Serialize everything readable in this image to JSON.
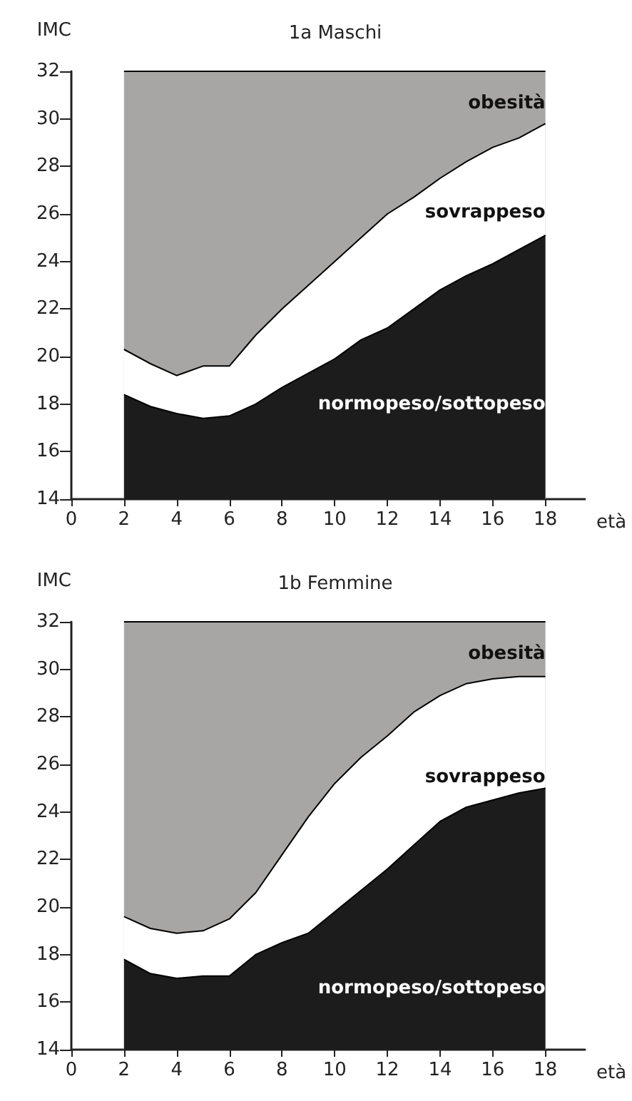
{
  "chart_data": [
    {
      "type": "area",
      "title": "1a Maschi",
      "xlabel": "età",
      "ylabel": "IMC",
      "x": [
        2,
        3,
        4,
        5,
        6,
        7,
        8,
        9,
        10,
        11,
        12,
        13,
        14,
        15,
        16,
        17,
        18
      ],
      "series": [
        {
          "name": "obesità",
          "color": "#a8a6a4",
          "values": [
            32,
            32,
            32,
            32,
            32,
            32,
            32,
            32,
            32,
            32,
            32,
            32,
            32,
            32,
            32,
            32,
            32
          ]
        },
        {
          "name": "sovrappeso",
          "color": "#ffffff",
          "values": [
            20.3,
            19.7,
            19.2,
            19.6,
            19.6,
            20.9,
            22.0,
            23.0,
            24.0,
            25.0,
            26.0,
            26.7,
            27.5,
            28.2,
            28.8,
            29.2,
            29.8
          ]
        },
        {
          "name": "normopeso/sottopeso",
          "color": "#1c1c1c",
          "values": [
            18.4,
            17.9,
            17.6,
            17.4,
            17.5,
            18.0,
            18.7,
            19.3,
            19.9,
            20.7,
            21.2,
            22.0,
            22.8,
            23.4,
            23.9,
            24.5,
            25.1
          ]
        }
      ],
      "xlim": [
        0,
        19.5
      ],
      "xticks": [
        0,
        2,
        4,
        6,
        8,
        10,
        12,
        14,
        16,
        18
      ],
      "ylim": [
        14,
        32
      ],
      "yticks": [
        14,
        16,
        18,
        20,
        22,
        24,
        26,
        28,
        30,
        32
      ]
    },
    {
      "type": "area",
      "title": "1b Femmine",
      "xlabel": "età",
      "ylabel": "IMC",
      "x": [
        2,
        3,
        4,
        5,
        6,
        7,
        8,
        9,
        10,
        11,
        12,
        13,
        14,
        15,
        16,
        17,
        18
      ],
      "series": [
        {
          "name": "obesità",
          "color": "#a8a6a4",
          "values": [
            32,
            32,
            32,
            32,
            32,
            32,
            32,
            32,
            32,
            32,
            32,
            32,
            32,
            32,
            32,
            32,
            32
          ]
        },
        {
          "name": "sovrappeso",
          "color": "#ffffff",
          "values": [
            19.6,
            19.1,
            18.9,
            19.0,
            19.5,
            20.6,
            22.2,
            23.8,
            25.2,
            26.3,
            27.2,
            28.2,
            28.9,
            29.4,
            29.6,
            29.7,
            29.7
          ]
        },
        {
          "name": "normopeso/sottopeso",
          "color": "#1c1c1c",
          "values": [
            17.8,
            17.2,
            17.0,
            17.1,
            17.1,
            18.0,
            18.5,
            18.9,
            19.8,
            20.7,
            21.6,
            22.6,
            23.6,
            24.2,
            24.5,
            24.8,
            25.0
          ]
        }
      ],
      "xlim": [
        0,
        19.5
      ],
      "xticks": [
        0,
        2,
        4,
        6,
        8,
        10,
        12,
        14,
        16,
        18
      ],
      "ylim": [
        14,
        32
      ],
      "yticks": [
        14,
        16,
        18,
        20,
        22,
        24,
        26,
        28,
        30,
        32
      ]
    }
  ]
}
